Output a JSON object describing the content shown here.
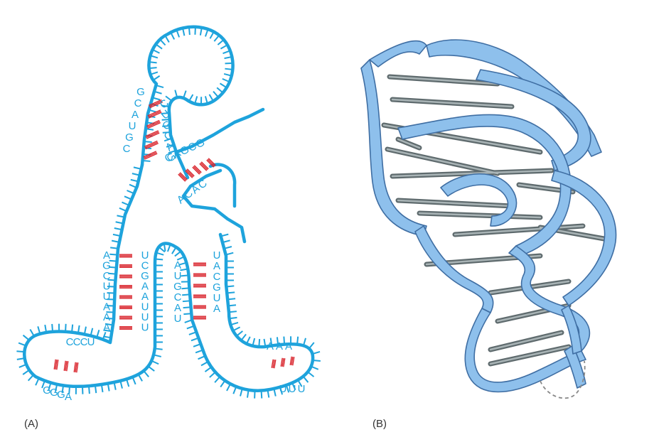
{
  "panels": {
    "a": {
      "label": "(A)",
      "sequences": {
        "hairpin_left_5p": [
          "G",
          "C",
          "A",
          "U",
          "G",
          "C"
        ],
        "hairpin_right": [
          "C",
          "U",
          "G",
          "C",
          "A",
          "G"
        ],
        "upper_helix_top": [
          "C",
          "A",
          "G",
          "C",
          "G"
        ],
        "upper_helix_bottom": [
          "A",
          "C",
          "A",
          "C"
        ],
        "left_stem_outer": [
          "A",
          "G",
          "C",
          "U",
          "U",
          "A",
          "A",
          "A"
        ],
        "left_stem_inner": [
          "U",
          "C",
          "G",
          "A",
          "A",
          "U",
          "U",
          "U"
        ],
        "right_stem_inner": [
          "A",
          "U",
          "G",
          "C",
          "A",
          "U"
        ],
        "right_stem_outer": [
          "U",
          "A",
          "C",
          "G",
          "U",
          "A"
        ],
        "left_foot_top": [
          "C",
          "C",
          "C",
          "U"
        ],
        "left_foot_bottom": [
          "G",
          "G",
          "G",
          "A"
        ],
        "right_foot_top": [
          "A",
          "A",
          "A"
        ],
        "right_foot_bottom": [
          "U",
          "U",
          "U"
        ]
      }
    },
    "b": {
      "label": "(B)"
    }
  },
  "colors": {
    "backbone": "#1ea3dc",
    "base_pair": "#d9232b",
    "ribbon_fill": "#8ec0ec",
    "ribbon_edge": "#3f6ea3",
    "rung": "#7e8a8c",
    "text": "#333333"
  }
}
